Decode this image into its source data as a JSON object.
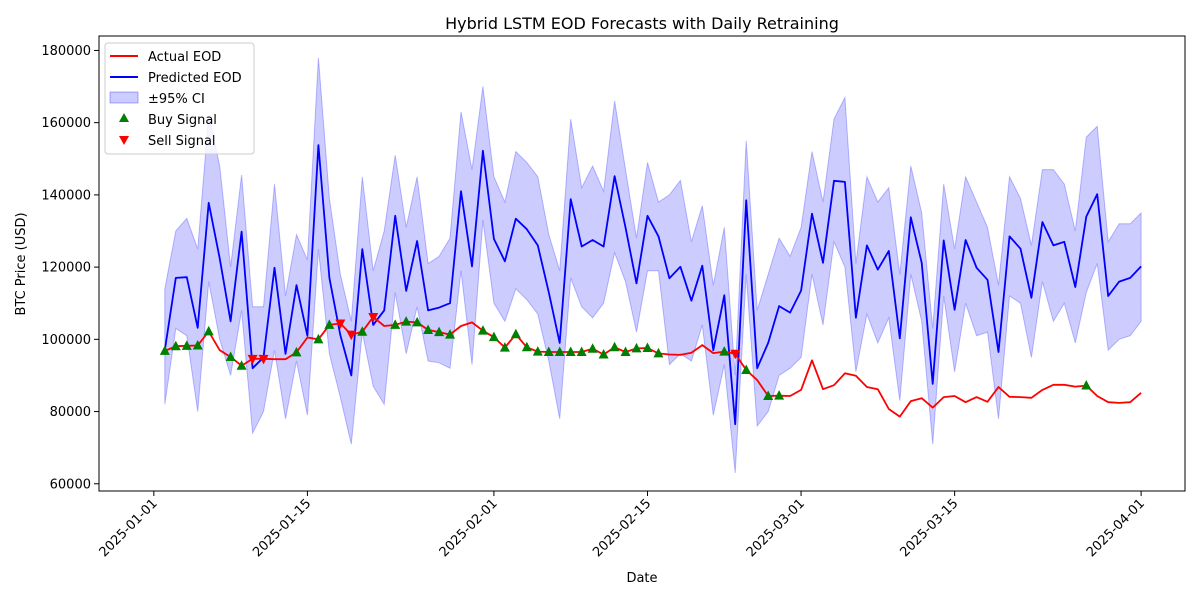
{
  "chart_data": {
    "type": "line",
    "title": "Hybrid LSTM EOD Forecasts with Daily Retraining",
    "xlabel": "Date",
    "ylabel": "BTC Price (USD)",
    "x_tick_labels": [
      "2025-01-01",
      "2025-01-15",
      "2025-02-01",
      "2025-02-15",
      "2025-03-01",
      "2025-03-15",
      "2025-04-01"
    ],
    "y_tick_labels": [
      "60000",
      "80000",
      "100000",
      "120000",
      "140000",
      "160000",
      "180000"
    ],
    "ylim": [
      58000,
      184000
    ],
    "x_start": "2025-01-01",
    "x_range": [
      "2024-12-27",
      "2025-04-05"
    ],
    "x": [
      "2025-01-02",
      "2025-01-03",
      "2025-01-04",
      "2025-01-05",
      "2025-01-06",
      "2025-01-07",
      "2025-01-08",
      "2025-01-09",
      "2025-01-10",
      "2025-01-11",
      "2025-01-12",
      "2025-01-13",
      "2025-01-14",
      "2025-01-15",
      "2025-01-16",
      "2025-01-17",
      "2025-01-18",
      "2025-01-19",
      "2025-01-20",
      "2025-01-21",
      "2025-01-22",
      "2025-01-23",
      "2025-01-24",
      "2025-01-25",
      "2025-01-26",
      "2025-01-27",
      "2025-01-28",
      "2025-01-29",
      "2025-01-30",
      "2025-01-31",
      "2025-02-01",
      "2025-02-02",
      "2025-02-03",
      "2025-02-04",
      "2025-02-05",
      "2025-02-06",
      "2025-02-07",
      "2025-02-08",
      "2025-02-09",
      "2025-02-10",
      "2025-02-11",
      "2025-02-12",
      "2025-02-13",
      "2025-02-14",
      "2025-02-15",
      "2025-02-16",
      "2025-02-17",
      "2025-02-18",
      "2025-02-19",
      "2025-02-20",
      "2025-02-21",
      "2025-02-22",
      "2025-02-23",
      "2025-02-24",
      "2025-02-25",
      "2025-02-26",
      "2025-02-27",
      "2025-02-28",
      "2025-03-01",
      "2025-03-02",
      "2025-03-03",
      "2025-03-04",
      "2025-03-05",
      "2025-03-06",
      "2025-03-07",
      "2025-03-08",
      "2025-03-09",
      "2025-03-10",
      "2025-03-11",
      "2025-03-12",
      "2025-03-13",
      "2025-03-14",
      "2025-03-15",
      "2025-03-16",
      "2025-03-17",
      "2025-03-18",
      "2025-03-19",
      "2025-03-20",
      "2025-03-21",
      "2025-03-22",
      "2025-03-23",
      "2025-03-24",
      "2025-03-25",
      "2025-03-26",
      "2025-03-27",
      "2025-03-28",
      "2025-03-29",
      "2025-03-30",
      "2025-03-31",
      "2025-04-01"
    ],
    "series": [
      {
        "name": "Actual EOD",
        "color": "#ff0000",
        "values": [
          96800,
          98100,
          98200,
          98300,
          102200,
          97000,
          95100,
          92700,
          94600,
          94600,
          94500,
          94500,
          96400,
          100500,
          100000,
          104000,
          104400,
          101300,
          102100,
          106200,
          103700,
          104000,
          104900,
          104700,
          102600,
          102000,
          101300,
          103700,
          104700,
          102400,
          100600,
          97700,
          101400,
          97800,
          96600,
          96500,
          96500,
          96500,
          96500,
          97400,
          95800,
          97800,
          96500,
          97500,
          97600,
          96100,
          95800,
          95700,
          96300,
          98400,
          96200,
          96600,
          96000,
          91500,
          88700,
          84300,
          84400,
          84300,
          86000,
          94200,
          86200,
          87300,
          90600,
          89900,
          86800,
          86200,
          80700,
          78600,
          82900,
          83700,
          81100,
          84000,
          84300,
          82600,
          84000,
          82700,
          86800,
          84100,
          84000,
          83800,
          86000,
          87400,
          87400,
          86900,
          87200,
          84300,
          82600,
          82400,
          82600,
          85200
        ]
      },
      {
        "name": "Predicted EOD",
        "color": "#0000ff",
        "values": [
          97000,
          117000,
          117200,
          103200,
          137800,
          122400,
          105000,
          129800,
          92000,
          95000,
          119800,
          96000,
          115000,
          101000,
          153800,
          117000,
          101200,
          90000,
          125000,
          104000,
          108000,
          134200,
          113400,
          127200,
          108000,
          108800,
          110000,
          141000,
          120200,
          152200,
          127800,
          121600,
          133400,
          130500,
          126000,
          113000,
          99000,
          138800,
          125700,
          127500,
          125700,
          145200,
          131000,
          115500,
          134200,
          128500,
          116900,
          120100,
          110700,
          120400,
          97000,
          112200,
          76500,
          138500,
          92000,
          99000,
          109200,
          107400,
          113500,
          134800,
          121200,
          143900,
          143600,
          106000,
          126000,
          119300,
          124500,
          100300,
          133800,
          121200,
          87700,
          127400,
          108200,
          127500,
          119800,
          116500,
          96500,
          128500,
          125100,
          111500,
          132500,
          126000,
          127000,
          114500,
          134000,
          140200,
          112000,
          116000,
          117000,
          120200
        ]
      }
    ],
    "ci_band": {
      "name": "±95% CI",
      "color": "#0000ff",
      "lower": [
        82000,
        103000,
        101000,
        80000,
        116000,
        100000,
        90000,
        108000,
        74000,
        80000,
        97000,
        78000,
        94000,
        79000,
        125000,
        96000,
        84000,
        71000,
        102000,
        87000,
        82000,
        113000,
        96000,
        109000,
        94000,
        93500,
        92000,
        119000,
        93000,
        133000,
        110000,
        105000,
        114000,
        111000,
        107000,
        94000,
        78000,
        117000,
        109000,
        106000,
        110000,
        124000,
        116000,
        102000,
        119000,
        119000,
        93000,
        96000,
        94000,
        104000,
        79000,
        93000,
        63000,
        118000,
        76000,
        80000,
        90000,
        92000,
        95000,
        118000,
        104000,
        127000,
        120000,
        91000,
        107000,
        99000,
        106000,
        83000,
        118000,
        105000,
        71000,
        112000,
        91000,
        110000,
        101000,
        102000,
        78000,
        112000,
        110000,
        95000,
        116000,
        105000,
        110000,
        99000,
        113000,
        121000,
        97000,
        100000,
        101000,
        105000
      ],
      "upper": [
        114000,
        130000,
        133500,
        125000,
        162000,
        148000,
        120000,
        145500,
        109000,
        109000,
        143000,
        112000,
        129000,
        122000,
        178000,
        139000,
        118000,
        105000,
        145000,
        119000,
        130000,
        151000,
        131000,
        145000,
        121000,
        123000,
        128000,
        163000,
        147000,
        170000,
        145000,
        138000,
        152000,
        149000,
        145000,
        129000,
        119000,
        161000,
        142000,
        148000,
        141000,
        166000,
        147000,
        128000,
        149000,
        138000,
        140000,
        144000,
        127000,
        137000,
        115000,
        131000,
        90000,
        155000,
        108000,
        118000,
        128000,
        123000,
        131000,
        152000,
        138000,
        161000,
        167000,
        121000,
        145000,
        138000,
        142000,
        118000,
        148000,
        135000,
        103000,
        143000,
        125000,
        145000,
        138000,
        131000,
        115000,
        145000,
        139000,
        126000,
        147000,
        147000,
        143000,
        130000,
        156000,
        159000,
        127000,
        132000,
        132000,
        135000
      ]
    },
    "buy_signals": {
      "name": "Buy Signal",
      "color": "#008000",
      "x": [
        "2025-01-02",
        "2025-01-03",
        "2025-01-04",
        "2025-01-05",
        "2025-01-06",
        "2025-01-08",
        "2025-01-09",
        "2025-01-14",
        "2025-01-16",
        "2025-01-17",
        "2025-01-20",
        "2025-01-23",
        "2025-01-24",
        "2025-01-25",
        "2025-01-26",
        "2025-01-27",
        "2025-01-28",
        "2025-01-31",
        "2025-02-01",
        "2025-02-02",
        "2025-02-03",
        "2025-02-04",
        "2025-02-05",
        "2025-02-06",
        "2025-02-07",
        "2025-02-08",
        "2025-02-09",
        "2025-02-10",
        "2025-02-11",
        "2025-02-12",
        "2025-02-13",
        "2025-02-14",
        "2025-02-15",
        "2025-02-16",
        "2025-02-22",
        "2025-02-24",
        "2025-02-26",
        "2025-02-27",
        "2025-03-27"
      ],
      "y": [
        96800,
        98100,
        98200,
        98300,
        102200,
        95100,
        92700,
        96400,
        100000,
        104000,
        102100,
        104000,
        104900,
        104700,
        102600,
        102000,
        101300,
        102400,
        100600,
        97700,
        101400,
        97800,
        96600,
        96500,
        96500,
        96500,
        96500,
        97400,
        95800,
        97800,
        96500,
        97500,
        97600,
        96100,
        96600,
        91500,
        84300,
        84400,
        87200
      ]
    },
    "sell_signals": {
      "name": "Sell Signal",
      "color": "#ff0000",
      "x": [
        "2025-01-10",
        "2025-01-11",
        "2025-01-18",
        "2025-01-19",
        "2025-01-21",
        "2025-02-23"
      ],
      "y": [
        94600,
        94600,
        104400,
        101300,
        106200,
        96000
      ]
    },
    "legend": {
      "position": "upper-left",
      "items": [
        "Actual EOD",
        "Predicted EOD",
        "±95% CI",
        "Buy Signal",
        "Sell Signal"
      ]
    },
    "grid": false
  }
}
